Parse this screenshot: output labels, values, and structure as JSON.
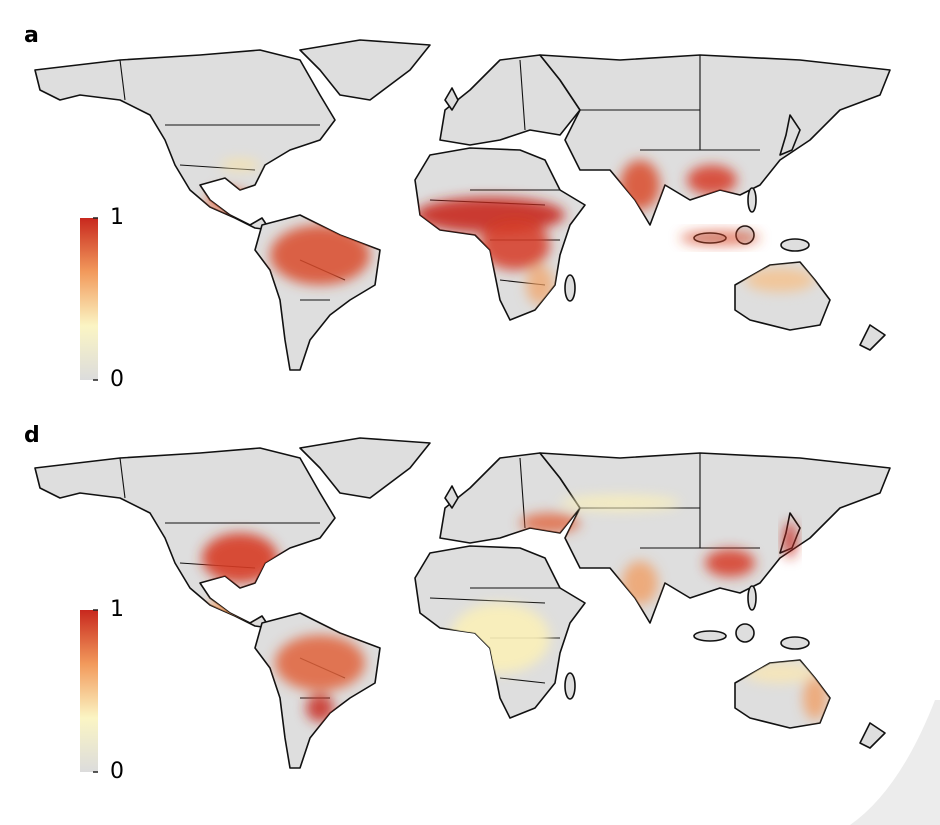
{
  "panels": [
    {
      "label": "a",
      "colorbar": {
        "clim": [
          0,
          1
        ],
        "ticks": [
          0,
          1
        ],
        "colors": [
          "#dcdcdc",
          "#fbf5c4",
          "#f29a5c",
          "#c8281e"
        ]
      }
    },
    {
      "label": "d",
      "colorbar": {
        "clim": [
          0,
          1
        ],
        "ticks": [
          0,
          1
        ],
        "colors": [
          "#dcdcdc",
          "#fbf5c4",
          "#f29a5c",
          "#c8281e"
        ]
      }
    }
  ]
}
